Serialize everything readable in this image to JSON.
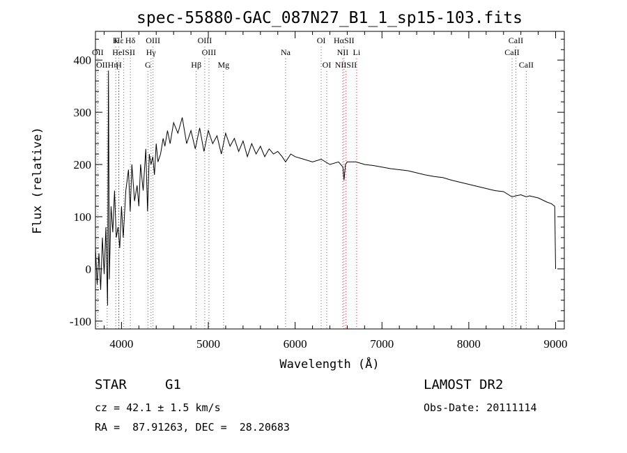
{
  "chart_data": {
    "type": "line",
    "title": "spec-55880-GAC_087N27_B1_1_sp15-103.fits",
    "xlabel": "Wavelength (Å)",
    "ylabel": "Flux (relative)",
    "xlim": [
      3700,
      9100
    ],
    "ylim": [
      -115,
      455
    ],
    "xticks": [
      4000,
      5000,
      6000,
      7000,
      8000,
      9000
    ],
    "yticks": [
      -100,
      0,
      100,
      200,
      300,
      400
    ],
    "grid": false,
    "series": [
      {
        "x": [
          3700,
          3720,
          3740,
          3760,
          3780,
          3800,
          3820,
          3840,
          3850,
          3860,
          3880,
          3900,
          3920,
          3940,
          3960,
          3980,
          4000,
          4020,
          4050,
          4080,
          4100,
          4120,
          4150,
          4180,
          4200,
          4220,
          4250,
          4280,
          4300,
          4320,
          4340,
          4360,
          4380,
          4400,
          4420,
          4450,
          4480,
          4500,
          4530,
          4560,
          4600,
          4650,
          4700,
          4750,
          4800,
          4850,
          4900,
          4950,
          5000,
          5050,
          5100,
          5150,
          5200,
          5250,
          5300,
          5350,
          5400,
          5450,
          5500,
          5550,
          5600,
          5650,
          5700,
          5750,
          5800,
          5850,
          5890,
          5950,
          6000,
          6100,
          6200,
          6300,
          6400,
          6500,
          6550,
          6563,
          6580,
          6600,
          6700,
          6800,
          6900,
          7000,
          7100,
          7200,
          7300,
          7400,
          7500,
          7600,
          7700,
          7800,
          7900,
          8000,
          8100,
          8200,
          8300,
          8400,
          8498,
          8542,
          8600,
          8662,
          8700,
          8800,
          8900,
          8950,
          8990,
          9000
        ],
        "values": [
          40,
          -30,
          30,
          -40,
          60,
          -10,
          80,
          -70,
          380,
          -20,
          120,
          70,
          150,
          60,
          80,
          40,
          120,
          60,
          150,
          190,
          110,
          200,
          130,
          160,
          120,
          200,
          150,
          230,
          110,
          220,
          200,
          215,
          180,
          240,
          205,
          220,
          250,
          235,
          265,
          240,
          280,
          260,
          290,
          240,
          265,
          230,
          270,
          225,
          265,
          240,
          255,
          220,
          260,
          235,
          250,
          225,
          245,
          215,
          240,
          220,
          235,
          215,
          230,
          220,
          225,
          215,
          205,
          220,
          215,
          210,
          205,
          210,
          200,
          205,
          195,
          170,
          200,
          205,
          205,
          200,
          198,
          195,
          192,
          190,
          188,
          184,
          180,
          177,
          175,
          170,
          166,
          162,
          158,
          154,
          150,
          148,
          138,
          140,
          142,
          138,
          140,
          136,
          128,
          125,
          120,
          0
        ]
      }
    ],
    "spectral_lines": {
      "top": [
        {
          "label": "Hε",
          "x": 3970
        },
        {
          "label": "K",
          "x": 3934
        },
        {
          "label": "Hδ",
          "x": 4102
        },
        {
          "label": "OIII",
          "x": 4363
        },
        {
          "label": "OIII",
          "x": 4959
        },
        {
          "label": "OI",
          "x": 6300
        },
        {
          "label": "HαSII",
          "x": 6563
        },
        {
          "label": "CaII",
          "x": 8542
        }
      ],
      "middle": [
        {
          "label": "OII",
          "x": 3727
        },
        {
          "label": "HeISII",
          "x": 4026
        },
        {
          "label": "Hγ",
          "x": 4340
        },
        {
          "label": "OIII",
          "x": 5007
        },
        {
          "label": "Na",
          "x": 5890
        },
        {
          "label": "NII",
          "x": 6548
        },
        {
          "label": "Li",
          "x": 6708
        },
        {
          "label": "CaII",
          "x": 8498
        }
      ],
      "bottom": [
        {
          "label": "OIIHη",
          "x": 3835
        },
        {
          "label": "H",
          "x": 3968
        },
        {
          "label": "G",
          "x": 4304
        },
        {
          "label": "Hβ",
          "x": 4861
        },
        {
          "label": "Mg",
          "x": 5175
        },
        {
          "label": "OI",
          "x": 6364
        },
        {
          "label": "NIISII",
          "x": 6584
        },
        {
          "label": "CaII",
          "x": 8662
        }
      ]
    }
  },
  "info": {
    "object_class": "STAR",
    "subclass": "G1",
    "survey": "LAMOST DR2",
    "cz": "cz = 42.1 ± 1.5 km/s",
    "obs_date": "Obs-Date: 20111114",
    "coords": "RA =  87.91263, DEC =  28.20683"
  }
}
